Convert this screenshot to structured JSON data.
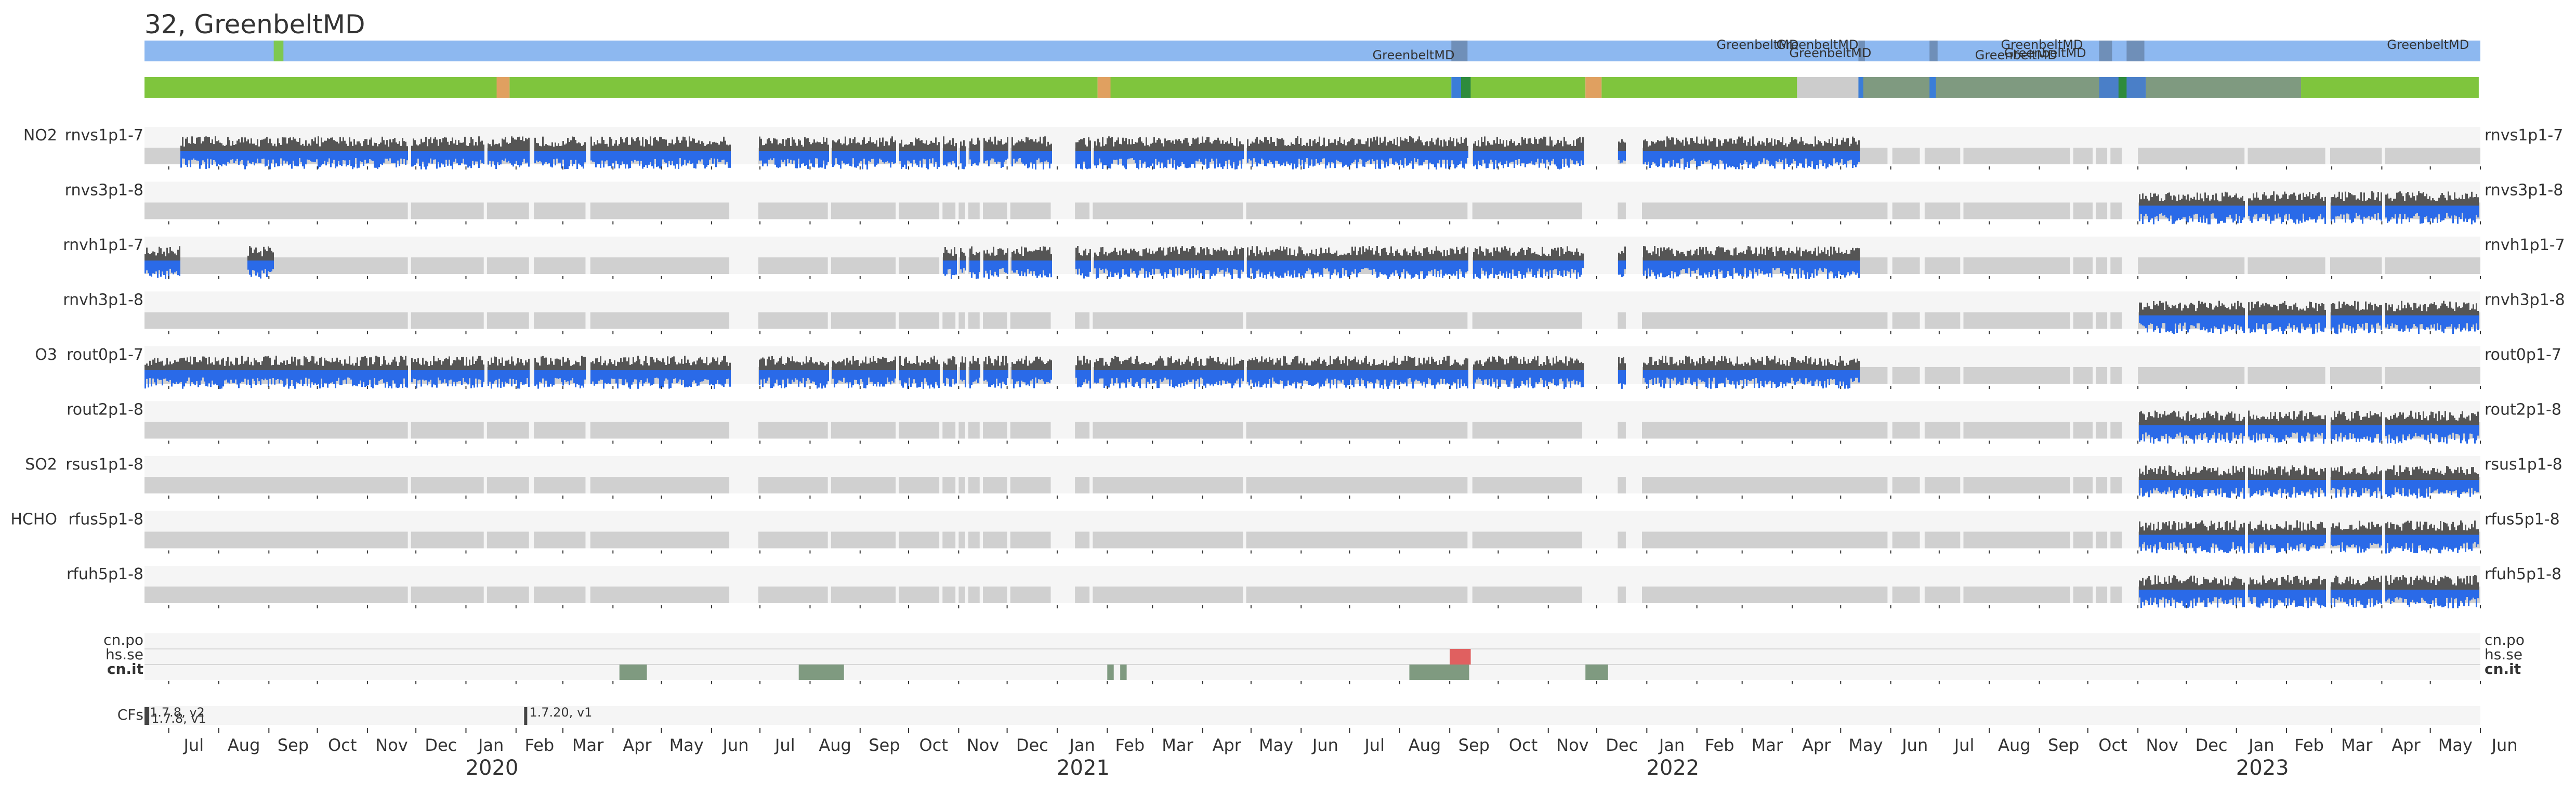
{
  "title": "32, GreenbeltMD",
  "chart_data": {
    "type": "timeline",
    "location_labels": [
      {
        "label": "GreenbeltMD",
        "date": "2021-09-04",
        "tier": 2
      },
      {
        "label": "GreenbeltMD",
        "date": "2022-04-05",
        "tier": 0
      },
      {
        "label": "GreenbeltMD",
        "date": "2022-05-12",
        "tier": 0
      },
      {
        "label": "GreenbeltMD",
        "date": "2022-05-20",
        "tier": 1
      },
      {
        "label": "GreenbeltMD",
        "date": "2022-09-12",
        "tier": 2
      },
      {
        "label": "GreenbeltMD",
        "date": "2022-09-28",
        "tier": 0
      },
      {
        "label": "GreenbeltMD",
        "date": "2022-09-30",
        "tier": 1
      },
      {
        "label": "GreenbeltMD",
        "date": "2023-05-25",
        "tier": 0
      }
    ],
    "location_markers": [
      {
        "start": "2019-09-04",
        "end": "2019-09-10",
        "color": "#7ec850"
      },
      {
        "start": "2021-09-02",
        "end": "2021-09-12",
        "color": "#6f8fb8"
      },
      {
        "start": "2022-05-12",
        "end": "2022-05-16",
        "color": "#6f8fb8"
      },
      {
        "start": "2022-06-25",
        "end": "2022-06-30",
        "color": "#6f8fb8"
      },
      {
        "start": "2022-10-08",
        "end": "2022-10-16",
        "color": "#6f8fb8"
      },
      {
        "start": "2022-10-25",
        "end": "2022-11-05",
        "color": "#6f8fb8"
      }
    ],
    "status_segments": [
      {
        "start": "2019-06-16",
        "end": "2020-01-20",
        "color": "#7fc53d"
      },
      {
        "start": "2020-01-20",
        "end": "2020-01-28",
        "color": "#e0a060"
      },
      {
        "start": "2020-01-28",
        "end": "2021-01-26",
        "color": "#7fc53d"
      },
      {
        "start": "2021-01-26",
        "end": "2021-02-03",
        "color": "#e0a060"
      },
      {
        "start": "2021-02-03",
        "end": "2021-09-02",
        "color": "#7fc53d"
      },
      {
        "start": "2021-09-02",
        "end": "2021-09-12",
        "color": "#3b7dd8"
      },
      {
        "start": "2021-09-08",
        "end": "2021-09-14",
        "color": "#2e8b3c"
      },
      {
        "start": "2021-09-14",
        "end": "2021-11-24",
        "color": "#7fc53d"
      },
      {
        "start": "2021-11-24",
        "end": "2021-12-04",
        "color": "#e0a060"
      },
      {
        "start": "2021-12-04",
        "end": "2022-04-04",
        "color": "#7fc53d"
      },
      {
        "start": "2022-04-04",
        "end": "2022-05-12",
        "color": "#cccccc"
      },
      {
        "start": "2022-05-12",
        "end": "2022-10-08",
        "color": "#7f9a80"
      },
      {
        "start": "2022-05-12",
        "end": "2022-05-15",
        "color": "#3b7dd8"
      },
      {
        "start": "2022-06-25",
        "end": "2022-06-29",
        "color": "#3b7dd8"
      },
      {
        "start": "2022-10-08",
        "end": "2022-11-06",
        "color": "#4a7fc8"
      },
      {
        "start": "2022-10-20",
        "end": "2022-10-25",
        "color": "#2e8b3c"
      },
      {
        "start": "2022-11-06",
        "end": "2023-02-10",
        "color": "#7f9a80"
      },
      {
        "start": "2023-02-10",
        "end": "2023-05-31",
        "color": "#7fc53d"
      }
    ],
    "data_rows": [
      {
        "product": "NO2",
        "name": "rnvs1p1-7",
        "periods": [
          [
            "2019-07-08",
            "2022-05-12"
          ]
        ]
      },
      {
        "product": "",
        "name": "rnvs3p1-8",
        "periods": [
          [
            "2022-11-01",
            "2023-05-31"
          ]
        ]
      },
      {
        "product": "",
        "name": "rnvh1p1-7",
        "periods": [
          [
            "2019-06-16",
            "2019-07-08"
          ],
          [
            "2019-08-18",
            "2019-09-04"
          ],
          [
            "2020-10-20",
            "2022-05-12"
          ]
        ]
      },
      {
        "product": "",
        "name": "rnvh3p1-8",
        "periods": [
          [
            "2022-11-01",
            "2023-05-31"
          ]
        ]
      },
      {
        "product": "O3",
        "name": "rout0p1-7",
        "periods": [
          [
            "2019-06-16",
            "2022-05-12"
          ]
        ]
      },
      {
        "product": "",
        "name": "rout2p1-8",
        "periods": [
          [
            "2022-11-01",
            "2023-05-31"
          ]
        ]
      },
      {
        "product": "SO2",
        "name": "rsus1p1-8",
        "periods": [
          [
            "2022-11-01",
            "2023-05-31"
          ]
        ]
      },
      {
        "product": "HCHO",
        "name": "rfus5p1-8",
        "periods": [
          [
            "2022-11-01",
            "2023-05-31"
          ]
        ]
      },
      {
        "product": "",
        "name": "rfuh5p1-8",
        "periods": [
          [
            "2022-11-01",
            "2023-05-31"
          ]
        ]
      }
    ],
    "operation_gaps": [
      [
        "2019-11-26",
        "2019-11-28"
      ],
      [
        "2020-01-12",
        "2020-01-14"
      ],
      [
        "2020-02-09",
        "2020-02-12"
      ],
      [
        "2020-03-15",
        "2020-03-18"
      ],
      [
        "2020-06-12",
        "2020-06-30"
      ],
      [
        "2020-08-12",
        "2020-08-14"
      ],
      [
        "2020-09-23",
        "2020-09-25"
      ],
      [
        "2020-10-20",
        "2020-10-22"
      ],
      [
        "2020-10-30",
        "2020-11-01"
      ],
      [
        "2020-11-05",
        "2020-11-07"
      ],
      [
        "2020-11-14",
        "2020-11-16"
      ],
      [
        "2020-12-01",
        "2020-12-03"
      ],
      [
        "2020-12-28",
        "2021-01-12"
      ],
      [
        "2021-01-21",
        "2021-01-23"
      ],
      [
        "2021-04-26",
        "2021-04-28"
      ],
      [
        "2021-09-12",
        "2021-09-15"
      ],
      [
        "2021-11-22",
        "2021-12-14"
      ],
      [
        "2021-12-19",
        "2021-12-29"
      ],
      [
        "2022-05-30",
        "2022-06-02"
      ],
      [
        "2022-06-19",
        "2022-06-22"
      ],
      [
        "2022-07-14",
        "2022-07-16"
      ],
      [
        "2022-09-20",
        "2022-09-22"
      ],
      [
        "2022-10-04",
        "2022-10-06"
      ],
      [
        "2022-10-13",
        "2022-10-15"
      ],
      [
        "2022-10-22",
        "2022-11-01"
      ],
      [
        "2023-01-06",
        "2023-01-08"
      ],
      [
        "2023-02-25",
        "2023-02-28"
      ],
      [
        "2023-04-01",
        "2023-04-03"
      ]
    ],
    "cn_rows": [
      "cn.po",
      "hs.se",
      "cn.it"
    ],
    "cn_events": [
      {
        "row": "hs.se",
        "start": "2021-09-01",
        "end": "2021-09-14",
        "color": "#e06060"
      },
      {
        "row": "cn.it",
        "start": "2020-04-05",
        "end": "2020-04-22",
        "color": "#7f9a80"
      },
      {
        "row": "cn.it",
        "start": "2020-07-25",
        "end": "2020-08-22",
        "color": "#7f9a80"
      },
      {
        "row": "cn.it",
        "start": "2021-02-01",
        "end": "2021-02-05",
        "color": "#7f9a80"
      },
      {
        "row": "cn.it",
        "start": "2021-02-09",
        "end": "2021-02-13",
        "color": "#7f9a80"
      },
      {
        "row": "cn.it",
        "start": "2021-08-07",
        "end": "2021-09-13",
        "color": "#7f9a80"
      },
      {
        "row": "cn.it",
        "start": "2021-11-24",
        "end": "2021-12-08",
        "color": "#7f9a80"
      }
    ],
    "cfs_label": "CFs",
    "cfs_events": [
      {
        "date": "2019-06-16",
        "label": "1.7.8, v2"
      },
      {
        "date": "2019-06-17",
        "label": "1.7.8, v1"
      },
      {
        "date": "2020-02-06",
        "label": "1.7.20, v1"
      }
    ],
    "x_range": [
      "2019-06-16",
      "2023-06-01"
    ],
    "month_ticks": [
      "Jul",
      "Aug",
      "Sep",
      "Oct",
      "Nov",
      "Dec",
      "Jan",
      "Feb",
      "Mar",
      "Apr",
      "May",
      "Jun",
      "Jul",
      "Aug",
      "Sep",
      "Oct",
      "Nov",
      "Dec",
      "Jan",
      "Feb",
      "Mar",
      "Apr",
      "May",
      "Jun",
      "Jul",
      "Aug",
      "Sep",
      "Oct",
      "Nov",
      "Dec",
      "Jan",
      "Feb",
      "Mar",
      "Apr",
      "May",
      "Jun",
      "Jul",
      "Aug",
      "Sep",
      "Oct",
      "Nov",
      "Dec",
      "Jan",
      "Feb",
      "Mar",
      "Apr",
      "May",
      "Jun"
    ],
    "year_labels": [
      "2020",
      "2021",
      "2022",
      "2023"
    ],
    "colors": {
      "location_bar": "#8db8f0",
      "row_bg": "#f5f5f5",
      "gap_bar": "#d0d0d0",
      "data_dark": "#555555",
      "data_blue": "#2a6ae8"
    }
  }
}
